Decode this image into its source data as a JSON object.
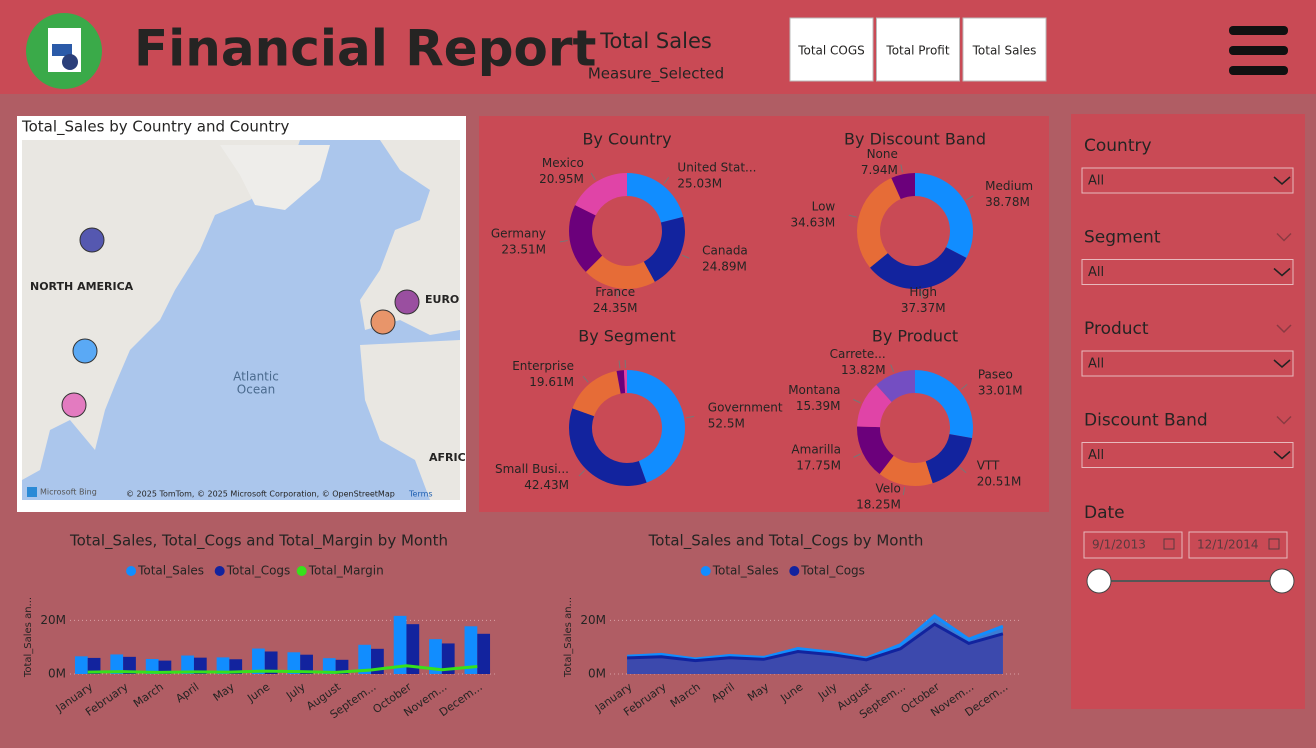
{
  "header": {
    "title": "Financial Report",
    "measure_value": "Total Sales",
    "measure_label": "Measure_Selected",
    "buttons": [
      "Total COGS",
      "Total Profit",
      "Total Sales"
    ]
  },
  "map": {
    "title": "Total_Sales by Country and Country",
    "labels": [
      "NORTH AMERICA",
      "Atlantic",
      "Ocean",
      "EURO",
      "AFRIC"
    ],
    "provider": "Microsoft Bing",
    "attribution": "© 2025 TomTom, © 2025 Microsoft Corporation, © OpenStreetMap",
    "terms": "Terms"
  },
  "chart_data": [
    {
      "type": "donut",
      "title": "By Country",
      "categories": [
        "United Stat...",
        "Canada",
        "France",
        "Germany",
        "Mexico"
      ],
      "values": [
        25.03,
        24.89,
        24.35,
        23.51,
        20.95
      ],
      "value_labels": [
        "25.03M",
        "24.89M",
        "24.35M",
        "23.51M",
        "20.95M"
      ],
      "colors": [
        "#118dff",
        "#12239e",
        "#e66c37",
        "#6b007b",
        "#e044a7"
      ]
    },
    {
      "type": "donut",
      "title": "By Discount Band",
      "categories": [
        "Medium",
        "High",
        "Low",
        "None"
      ],
      "values": [
        38.78,
        37.37,
        34.63,
        7.94
      ],
      "value_labels": [
        "38.78M",
        "37.37M",
        "34.63M",
        "7.94M"
      ],
      "colors": [
        "#118dff",
        "#12239e",
        "#e66c37",
        "#6b007b"
      ]
    },
    {
      "type": "donut",
      "title": "By Segment",
      "categories": [
        "Government",
        "Small Busi...",
        "Enterprise",
        null,
        null
      ],
      "values": [
        52.5,
        42.43,
        19.61,
        2.4,
        1.0
      ],
      "value_labels": [
        "52.5M",
        "42.43M",
        "19.61M",
        null,
        null
      ],
      "colors": [
        "#118dff",
        "#12239e",
        "#e66c37",
        "#6b007b",
        "#e044a7"
      ]
    },
    {
      "type": "donut",
      "title": "By Product",
      "categories": [
        "Paseo",
        "VTT",
        "Velo",
        "Amarilla",
        "Montana",
        "Carrete..."
      ],
      "values": [
        33.01,
        20.51,
        18.25,
        17.75,
        15.39,
        13.82
      ],
      "value_labels": [
        "33.01M",
        "20.51M",
        "18.25M",
        "17.75M",
        "15.39M",
        "13.82M"
      ],
      "colors": [
        "#118dff",
        "#12239e",
        "#e66c37",
        "#6b007b",
        "#e044a7",
        "#744ec2"
      ]
    },
    {
      "type": "bar",
      "title": "Total_Sales, Total_Cogs and Total_Margin by Month",
      "y_label": "Total_Sales an...",
      "categories": [
        "January",
        "February",
        "March",
        "April",
        "May",
        "June",
        "July",
        "August",
        "Septem...",
        "October",
        "Novem...",
        "Decem..."
      ],
      "series": [
        {
          "name": "Total_Sales",
          "color": "#118dff",
          "values": [
            6.6,
            7.3,
            5.6,
            6.9,
            6.2,
            9.5,
            8.1,
            5.9,
            10.9,
            21.7,
            13.0,
            17.8
          ]
        },
        {
          "name": "Total_Cogs",
          "color": "#12239e",
          "values": [
            6.0,
            6.4,
            5.0,
            6.1,
            5.5,
            8.4,
            7.2,
            5.3,
            9.4,
            18.6,
            11.4,
            15.0
          ]
        },
        {
          "name": "Total_Margin",
          "color": "#37e11b",
          "type": "line",
          "values": [
            0.7,
            0.9,
            0.6,
            0.8,
            0.7,
            1.1,
            0.9,
            0.6,
            1.5,
            3.1,
            1.6,
            2.8
          ]
        }
      ],
      "ylim": [
        0,
        25
      ],
      "yticks": [
        {
          "value": 0,
          "label": "0M"
        },
        {
          "value": 20,
          "label": "20M"
        }
      ],
      "grid": true
    },
    {
      "type": "area",
      "title": "Total_Sales and Total_Cogs by Month",
      "y_label": "Total_Sales an...",
      "categories": [
        "January",
        "February",
        "March",
        "April",
        "May",
        "June",
        "July",
        "August",
        "Septem...",
        "October",
        "Novem...",
        "Decem..."
      ],
      "series": [
        {
          "name": "Total_Sales",
          "color": "#118dff",
          "values": [
            6.6,
            7.3,
            5.6,
            6.9,
            6.2,
            9.5,
            8.1,
            5.9,
            10.9,
            21.7,
            13.0,
            17.8
          ]
        },
        {
          "name": "Total_Cogs",
          "color": "#12239e",
          "values": [
            6.0,
            6.4,
            5.0,
            6.1,
            5.5,
            8.4,
            7.2,
            5.3,
            9.4,
            18.6,
            11.4,
            15.0
          ]
        }
      ],
      "ylim": [
        0,
        25
      ],
      "yticks": [
        {
          "value": 0,
          "label": "0M"
        },
        {
          "value": 20,
          "label": "20M"
        }
      ],
      "grid": true
    }
  ],
  "filters": [
    {
      "label": "Country",
      "value": "All"
    },
    {
      "label": "Segment",
      "value": "All"
    },
    {
      "label": "Product",
      "value": "All"
    },
    {
      "label": "Discount Band",
      "value": "All"
    }
  ],
  "date": {
    "label": "Date",
    "start": "9/1/2013",
    "end": "12/1/2014"
  }
}
